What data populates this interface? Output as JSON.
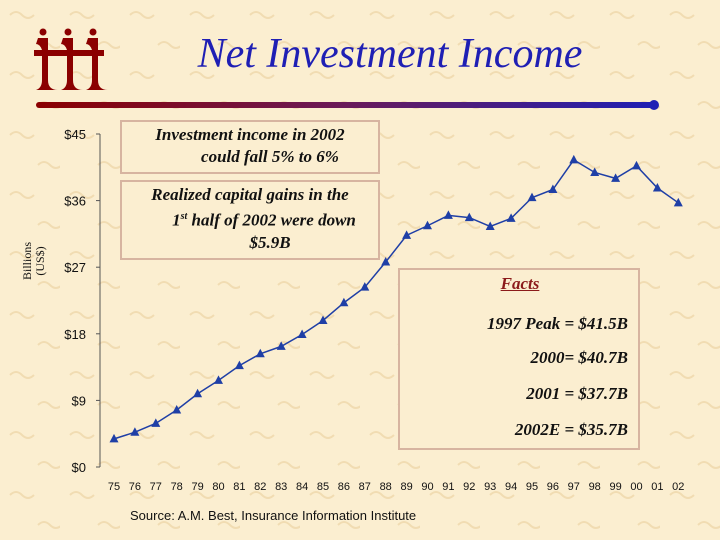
{
  "slide": {
    "title": "Net Investment Income",
    "source": "Source: A.M. Best, Insurance Information Institute",
    "ylabel_line1": "Billions",
    "ylabel_line2": "(US$)",
    "logo": "iii",
    "colors": {
      "title": "#1f1fb4",
      "series": "#1f3fa6",
      "rule_left": "#8b0000",
      "rule_right": "#1f1fb4",
      "facts_title": "#8b1a1a"
    }
  },
  "annotations": {
    "income_line1": "Investment income in 2002",
    "income_line2": "could fall 5% to 6%",
    "gains_line1": "Realized capital gains in the",
    "gains_line2_pre": "1",
    "gains_line2_sup": "st",
    "gains_line2_post": " half of 2002 were down",
    "gains_line3": "$5.9B"
  },
  "facts": {
    "title": "Facts",
    "items": [
      "1997 Peak = $41.5B",
      "2000= $40.7B",
      "2001 = $37.7B",
      "2002E = $35.7B"
    ]
  },
  "chart_data": {
    "type": "line",
    "categories": [
      "75",
      "76",
      "77",
      "78",
      "79",
      "80",
      "81",
      "82",
      "83",
      "84",
      "85",
      "86",
      "87",
      "88",
      "89",
      "90",
      "91",
      "92",
      "93",
      "94",
      "95",
      "96",
      "97",
      "98",
      "99",
      "00",
      "01",
      "02"
    ],
    "series": [
      {
        "values": [
          3.8,
          4.7,
          5.9,
          7.7,
          9.9,
          11.7,
          13.7,
          15.3,
          16.3,
          17.9,
          19.8,
          22.2,
          24.3,
          27.7,
          31.3,
          32.6,
          34.0,
          33.7,
          32.5,
          33.6,
          36.4,
          37.5,
          41.5,
          39.8,
          39.0,
          40.7,
          37.7,
          35.7
        ]
      }
    ],
    "yticks": [
      "$0",
      "$9",
      "$18",
      "$27",
      "$36",
      "$45"
    ],
    "ylim": [
      0,
      45
    ],
    "grid": false
  }
}
